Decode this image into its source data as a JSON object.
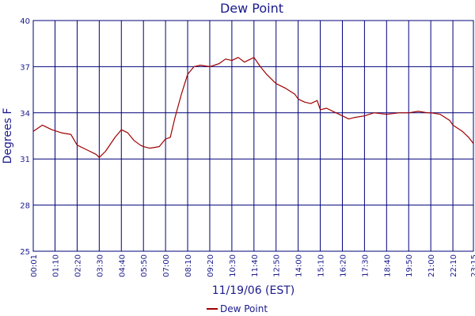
{
  "chart_data": {
    "type": "line",
    "title": "Dew Point",
    "xlabel": "11/19/06 (EST)",
    "ylabel": "Degrees F",
    "ylim": [
      25,
      40
    ],
    "y_ticks": [
      "25",
      "28",
      "31",
      "34",
      "37",
      "40"
    ],
    "x_ticks": [
      "00:01",
      "01:10",
      "02:20",
      "03:30",
      "04:40",
      "05:50",
      "07:00",
      "08:10",
      "09:20",
      "10:30",
      "11:40",
      "12:50",
      "14:00",
      "15:10",
      "16:20",
      "17:30",
      "18:40",
      "19:50",
      "21:00",
      "22:10",
      "23:15"
    ],
    "grid": true,
    "legend": "bottom-center",
    "colors": {
      "series": "#a00000",
      "grid": "#00007a",
      "text": "#1a1a8c"
    },
    "series": [
      {
        "name": "Dew Point",
        "x": [
          "00:01",
          "00:30",
          "01:00",
          "01:30",
          "02:00",
          "02:20",
          "02:50",
          "03:20",
          "03:30",
          "03:50",
          "04:20",
          "04:40",
          "05:00",
          "05:20",
          "05:40",
          "05:50",
          "06:10",
          "06:40",
          "07:00",
          "07:15",
          "07:30",
          "07:50",
          "08:10",
          "08:30",
          "08:50",
          "09:20",
          "09:50",
          "10:10",
          "10:30",
          "10:50",
          "11:10",
          "11:30",
          "11:40",
          "12:00",
          "12:20",
          "12:50",
          "13:20",
          "13:50",
          "14:00",
          "14:20",
          "14:40",
          "15:00",
          "15:10",
          "15:30",
          "15:50",
          "16:20",
          "16:40",
          "17:00",
          "17:30",
          "18:00",
          "18:40",
          "19:20",
          "19:50",
          "20:20",
          "20:50",
          "21:00",
          "21:30",
          "22:00",
          "22:10",
          "22:40",
          "23:00",
          "23:15"
        ],
        "values": [
          32.8,
          33.2,
          32.9,
          32.7,
          32.6,
          31.9,
          31.6,
          31.3,
          31.1,
          31.5,
          32.4,
          32.9,
          32.7,
          32.2,
          31.9,
          31.8,
          31.7,
          31.8,
          32.3,
          32.4,
          33.7,
          35.2,
          36.5,
          37.0,
          37.1,
          37.0,
          37.2,
          37.5,
          37.4,
          37.6,
          37.3,
          37.5,
          37.6,
          37.0,
          36.5,
          35.9,
          35.6,
          35.2,
          34.9,
          34.7,
          34.6,
          34.8,
          34.2,
          34.3,
          34.1,
          33.8,
          33.6,
          33.7,
          33.8,
          34.0,
          33.9,
          34.0,
          34.0,
          34.1,
          34.0,
          34.0,
          33.9,
          33.5,
          33.2,
          32.8,
          32.4,
          32.0
        ]
      }
    ]
  }
}
